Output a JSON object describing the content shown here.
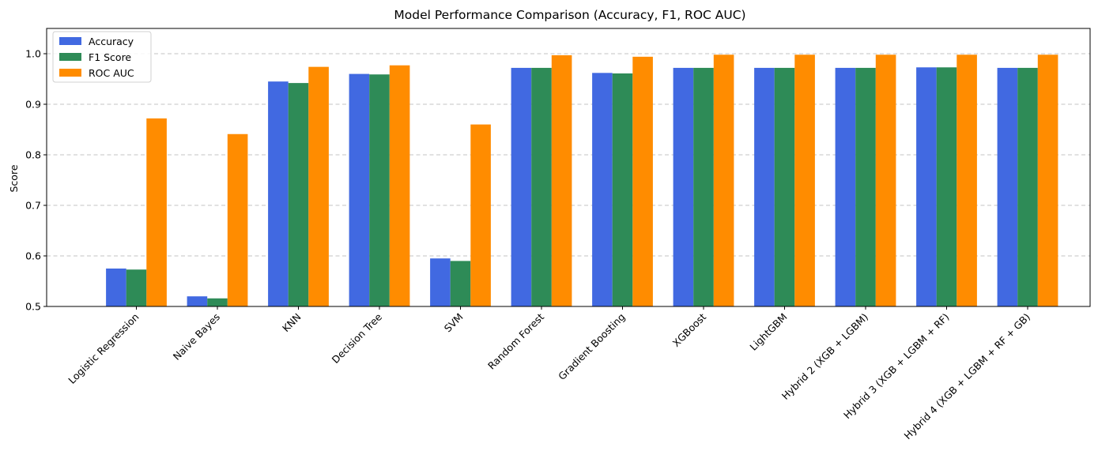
{
  "chart_data": {
    "type": "bar",
    "title": "Model Performance Comparison (Accuracy, F1, ROC AUC)",
    "xlabel": "",
    "ylabel": "Score",
    "ylim": [
      0.5,
      1.05
    ],
    "yticks": [
      "0.5",
      "0.6",
      "0.7",
      "0.8",
      "0.9",
      "1.0"
    ],
    "grid": "y-axis, dashed",
    "legend_position": "top-left",
    "categories": [
      "Logistic Regression",
      "Naive Bayes",
      "KNN",
      "Decision Tree",
      "SVM",
      "Random Forest",
      "Gradient Boosting",
      "XGBoost",
      "LightGBM",
      "Hybrid 2 (XGB + LGBM)",
      "Hybrid 3 (XGB + LGBM + RF)",
      "Hybrid 4 (XGB + LGBM + RF + GB)"
    ],
    "series": [
      {
        "name": "Accuracy",
        "color": "#4169e1",
        "values": [
          0.575,
          0.52,
          0.945,
          0.96,
          0.595,
          0.972,
          0.962,
          0.972,
          0.972,
          0.972,
          0.973,
          0.972
        ]
      },
      {
        "name": "F1 Score",
        "color": "#2e8b57",
        "values": [
          0.573,
          0.516,
          0.942,
          0.959,
          0.59,
          0.972,
          0.961,
          0.972,
          0.972,
          0.972,
          0.973,
          0.972
        ]
      },
      {
        "name": "ROC AUC",
        "color": "#ff8c00",
        "values": [
          0.872,
          0.841,
          0.974,
          0.977,
          0.86,
          0.997,
          0.994,
          0.998,
          0.998,
          0.998,
          0.998,
          0.998
        ]
      }
    ]
  }
}
